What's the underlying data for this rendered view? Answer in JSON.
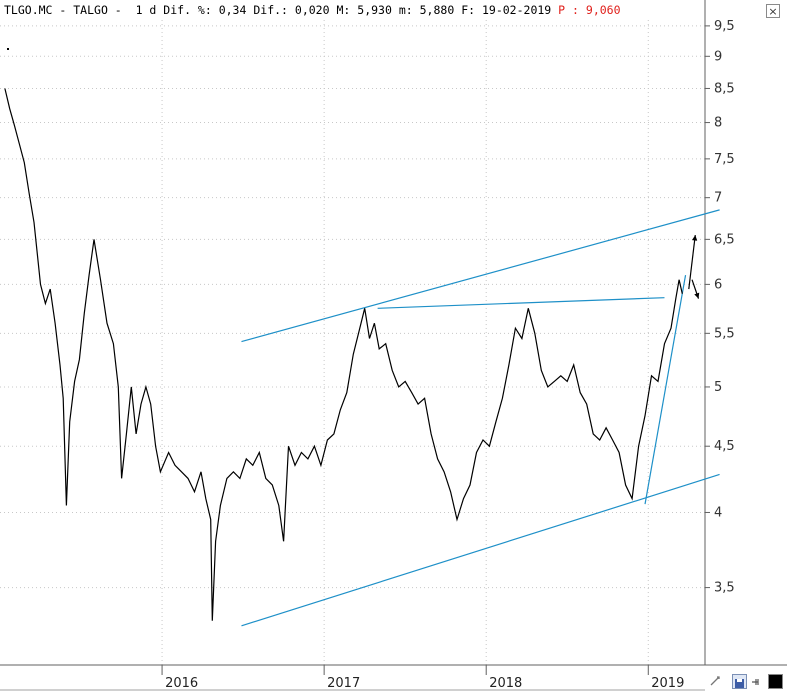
{
  "header": {
    "ticker": "TLGO.MC",
    "name": "TALGO",
    "period": "1 d",
    "dif_pct_label": "Dif. %:",
    "dif_pct": "0,34",
    "dif_label": "Dif.:",
    "dif": "0,020",
    "max_label": "M:",
    "max": "5,930",
    "min_label": "m:",
    "min": "5,880",
    "date_label": "F:",
    "date": "19-02-2019",
    "p_label": "P :",
    "p_value": "9,060",
    "highlight_color": "#e0201b"
  },
  "window": {
    "close_label": "×"
  },
  "colors": {
    "price_line": "#000000",
    "trendline": "#1e90c8",
    "grid": "#c8c8c8"
  },
  "chart_data": {
    "type": "line",
    "y_scale": "log",
    "ylim": [
      3.05,
      9.6
    ],
    "xlim": [
      2015.0,
      2019.35
    ],
    "ytick_values": [
      3.5,
      4,
      4.5,
      5,
      5.5,
      6,
      6.5,
      7,
      7.5,
      8,
      8.5,
      9,
      9.5
    ],
    "ytick_labels": [
      "3,5",
      "4",
      "4,5",
      "5",
      "5,5",
      "6",
      "6,5",
      "7",
      "7,5",
      "8",
      "8,5",
      "9",
      "9,5"
    ],
    "xtick_values": [
      2016.0,
      2017.0,
      2018.0,
      2019.0
    ],
    "xtick_labels": [
      "2016",
      "2017",
      "2018",
      "2019"
    ],
    "grid": true,
    "series": [
      {
        "values": [
          [
            2015.03,
            8.5
          ],
          [
            2015.06,
            8.2
          ],
          [
            2015.09,
            7.95
          ],
          [
            2015.12,
            7.7
          ],
          [
            2015.15,
            7.45
          ],
          [
            2015.18,
            7.05
          ],
          [
            2015.21,
            6.7
          ],
          [
            2015.25,
            6.0
          ],
          [
            2015.28,
            5.8
          ],
          [
            2015.31,
            5.95
          ],
          [
            2015.34,
            5.6
          ],
          [
            2015.37,
            5.2
          ],
          [
            2015.39,
            4.9
          ],
          [
            2015.41,
            4.05
          ],
          [
            2015.43,
            4.7
          ],
          [
            2015.46,
            5.05
          ],
          [
            2015.49,
            5.25
          ],
          [
            2015.52,
            5.7
          ],
          [
            2015.55,
            6.1
          ],
          [
            2015.58,
            6.5
          ],
          [
            2015.62,
            6.05
          ],
          [
            2015.66,
            5.6
          ],
          [
            2015.7,
            5.4
          ],
          [
            2015.73,
            5.0
          ],
          [
            2015.75,
            4.25
          ],
          [
            2015.78,
            4.6
          ],
          [
            2015.81,
            5.0
          ],
          [
            2015.84,
            4.6
          ],
          [
            2015.87,
            4.85
          ],
          [
            2015.9,
            5.0
          ],
          [
            2015.93,
            4.85
          ],
          [
            2015.96,
            4.5
          ],
          [
            2015.99,
            4.3
          ],
          [
            2016.04,
            4.45
          ],
          [
            2016.08,
            4.35
          ],
          [
            2016.12,
            4.3
          ],
          [
            2016.16,
            4.25
          ],
          [
            2016.2,
            4.15
          ],
          [
            2016.24,
            4.3
          ],
          [
            2016.27,
            4.1
          ],
          [
            2016.3,
            3.95
          ],
          [
            2016.31,
            3.3
          ],
          [
            2016.33,
            3.8
          ],
          [
            2016.36,
            4.05
          ],
          [
            2016.4,
            4.25
          ],
          [
            2016.44,
            4.3
          ],
          [
            2016.48,
            4.25
          ],
          [
            2016.52,
            4.4
          ],
          [
            2016.56,
            4.35
          ],
          [
            2016.6,
            4.45
          ],
          [
            2016.64,
            4.25
          ],
          [
            2016.68,
            4.2
          ],
          [
            2016.72,
            4.05
          ],
          [
            2016.75,
            3.8
          ],
          [
            2016.78,
            4.5
          ],
          [
            2016.82,
            4.35
          ],
          [
            2016.86,
            4.45
          ],
          [
            2016.9,
            4.4
          ],
          [
            2016.94,
            4.5
          ],
          [
            2016.98,
            4.35
          ],
          [
            2017.02,
            4.55
          ],
          [
            2017.06,
            4.6
          ],
          [
            2017.1,
            4.8
          ],
          [
            2017.14,
            4.95
          ],
          [
            2017.18,
            5.3
          ],
          [
            2017.22,
            5.55
          ],
          [
            2017.25,
            5.75
          ],
          [
            2017.28,
            5.45
          ],
          [
            2017.31,
            5.6
          ],
          [
            2017.34,
            5.35
          ],
          [
            2017.38,
            5.4
          ],
          [
            2017.42,
            5.15
          ],
          [
            2017.46,
            5.0
          ],
          [
            2017.5,
            5.05
          ],
          [
            2017.54,
            4.95
          ],
          [
            2017.58,
            4.85
          ],
          [
            2017.62,
            4.9
          ],
          [
            2017.66,
            4.6
          ],
          [
            2017.7,
            4.4
          ],
          [
            2017.74,
            4.3
          ],
          [
            2017.78,
            4.15
          ],
          [
            2017.82,
            3.95
          ],
          [
            2017.86,
            4.1
          ],
          [
            2017.9,
            4.2
          ],
          [
            2017.94,
            4.45
          ],
          [
            2017.98,
            4.55
          ],
          [
            2018.02,
            4.5
          ],
          [
            2018.06,
            4.7
          ],
          [
            2018.1,
            4.9
          ],
          [
            2018.14,
            5.2
          ],
          [
            2018.18,
            5.55
          ],
          [
            2018.22,
            5.45
          ],
          [
            2018.26,
            5.75
          ],
          [
            2018.3,
            5.5
          ],
          [
            2018.34,
            5.15
          ],
          [
            2018.38,
            5.0
          ],
          [
            2018.42,
            5.05
          ],
          [
            2018.46,
            5.1
          ],
          [
            2018.5,
            5.05
          ],
          [
            2018.54,
            5.2
          ],
          [
            2018.58,
            4.95
          ],
          [
            2018.62,
            4.85
          ],
          [
            2018.66,
            4.6
          ],
          [
            2018.7,
            4.55
          ],
          [
            2018.74,
            4.65
          ],
          [
            2018.78,
            4.55
          ],
          [
            2018.82,
            4.45
          ],
          [
            2018.86,
            4.2
          ],
          [
            2018.9,
            4.1
          ],
          [
            2018.94,
            4.5
          ],
          [
            2018.98,
            4.75
          ],
          [
            2019.02,
            5.1
          ],
          [
            2019.06,
            5.05
          ],
          [
            2019.1,
            5.4
          ],
          [
            2019.14,
            5.55
          ],
          [
            2019.17,
            5.85
          ],
          [
            2019.19,
            6.05
          ],
          [
            2019.21,
            5.9
          ]
        ]
      }
    ],
    "trendlines": [
      {
        "from": [
          2016.49,
          5.42
        ],
        "to": [
          2019.44,
          6.85
        ]
      },
      {
        "from": [
          2016.49,
          3.27
        ],
        "to": [
          2019.44,
          4.28
        ]
      },
      {
        "from": [
          2017.33,
          5.75
        ],
        "to": [
          2019.1,
          5.86
        ]
      },
      {
        "from": [
          2018.98,
          4.06
        ],
        "to": [
          2019.23,
          6.1
        ]
      }
    ],
    "arrows": [
      {
        "from": [
          2019.25,
          5.95
        ],
        "to": [
          2019.29,
          6.55
        ]
      },
      {
        "from": [
          2019.27,
          6.05
        ],
        "to": [
          2019.31,
          5.85
        ]
      }
    ]
  }
}
